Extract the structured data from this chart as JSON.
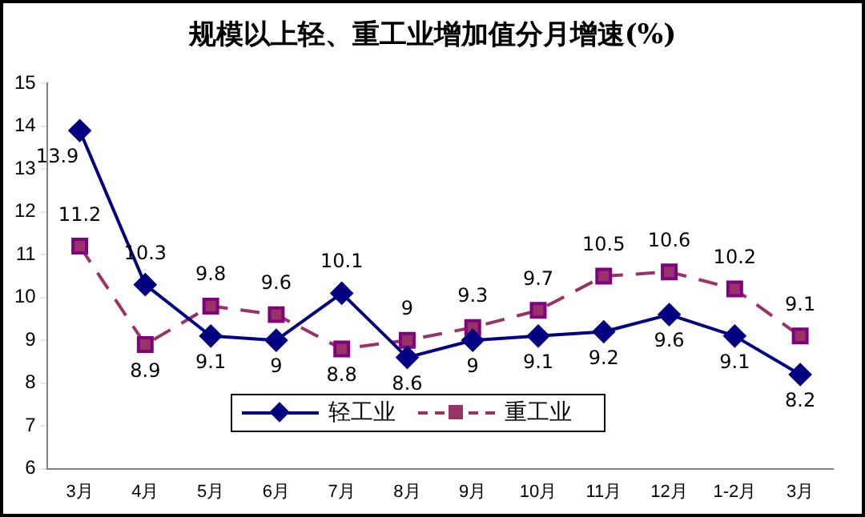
{
  "chart_data": {
    "type": "line",
    "title": "规模以上轻、重工业增加值分月增速(%)",
    "categories": [
      "3月",
      "4月",
      "5月",
      "6月",
      "7月",
      "8月",
      "9月",
      "10月",
      "11月",
      "12月",
      "1-2月",
      "3月"
    ],
    "series": [
      {
        "name": "轻工业",
        "color": "#000080",
        "marker": "diamond",
        "line_style": "solid",
        "values": [
          13.9,
          10.3,
          9.1,
          9,
          10.1,
          8.6,
          9,
          9.1,
          9.2,
          9.6,
          9.1,
          8.2
        ]
      },
      {
        "name": "重工业",
        "color": "#993366",
        "marker": "square",
        "line_style": "dashed",
        "values": [
          11.2,
          8.9,
          9.8,
          9.6,
          8.8,
          9,
          9.3,
          9.7,
          10.5,
          10.6,
          10.2,
          9.1
        ]
      }
    ],
    "ylim": [
      6,
      15
    ],
    "yticks": [
      6,
      7,
      8,
      9,
      10,
      11,
      12,
      13,
      14,
      15
    ],
    "grid": false,
    "legend": "bottom",
    "data_labels": true
  }
}
